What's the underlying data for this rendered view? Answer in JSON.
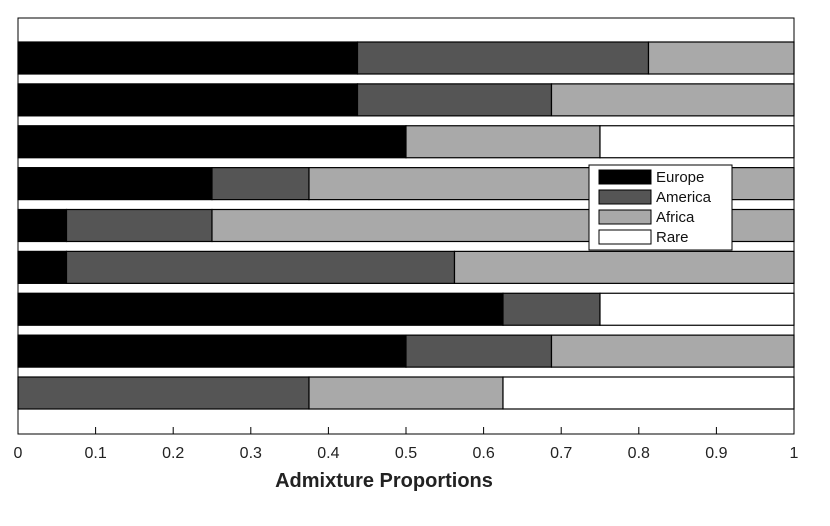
{
  "chart_data": {
    "type": "bar",
    "orientation": "horizontal",
    "stacked": true,
    "title": "",
    "xlabel": "Admixture Proportions",
    "ylabel": "",
    "xlim": [
      0,
      1
    ],
    "xticks": [
      "0",
      "0.1",
      "0.2",
      "0.3",
      "0.4",
      "0.5",
      "0.6",
      "0.7",
      "0.8",
      "0.9",
      "1"
    ],
    "categories": [
      "",
      "",
      "",
      "",
      "",
      "",
      "",
      "",
      ""
    ],
    "series": [
      {
        "name": "Europe",
        "color": "#000000",
        "values": [
          0.4375,
          0.4375,
          0.5,
          0.25,
          0.0625,
          0.0625,
          0.625,
          0.5,
          0
        ]
      },
      {
        "name": "America",
        "color": "#555555",
        "values": [
          0.375,
          0.25,
          0,
          0.125,
          0.1875,
          0.5,
          0.125,
          0.1875,
          0.375
        ]
      },
      {
        "name": "Africa",
        "color": "#a9a9a9",
        "values": [
          0.1875,
          0.3125,
          0.25,
          0.625,
          0.75,
          0.4375,
          0,
          0.3125,
          0.25
        ]
      },
      {
        "name": "Rare",
        "color": "#ffffff",
        "values": [
          0,
          0,
          0.25,
          0,
          0,
          0,
          0.25,
          0,
          0.375
        ]
      }
    ],
    "grid": false,
    "legend_position": "right"
  }
}
